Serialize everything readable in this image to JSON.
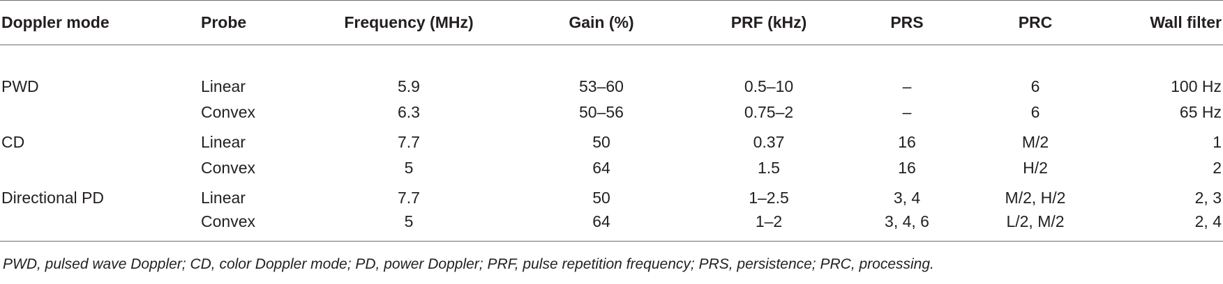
{
  "table": {
    "headers": [
      "Doppler mode",
      "Probe",
      "Frequency (MHz)",
      "Gain (%)",
      "PRF (kHz)",
      "PRS",
      "PRC",
      "Wall filter"
    ],
    "rows": [
      {
        "mode": "PWD",
        "probe": "Linear",
        "frequency": "5.9",
        "gain": "53–60",
        "prf": "0.5–10",
        "prs": "–",
        "prc": "6",
        "wall_filter": "100 Hz"
      },
      {
        "mode": "",
        "probe": "Convex",
        "frequency": "6.3",
        "gain": "50–56",
        "prf": "0.75–2",
        "prs": "–",
        "prc": "6",
        "wall_filter": "65 Hz"
      },
      {
        "mode": "CD",
        "probe": "Linear",
        "frequency": "7.7",
        "gain": "50",
        "prf": "0.37",
        "prs": "16",
        "prc": "M/2",
        "wall_filter": "1"
      },
      {
        "mode": "",
        "probe": "Convex",
        "frequency": "5",
        "gain": "64",
        "prf": "1.5",
        "prs": "16",
        "prc": "H/2",
        "wall_filter": "2"
      },
      {
        "mode": "Directional PD",
        "probe": "Linear",
        "frequency": "7.7",
        "gain": "50",
        "prf": "1–2.5",
        "prs": "3, 4",
        "prc": "M/2, H/2",
        "wall_filter": "2, 3"
      },
      {
        "mode": "",
        "probe": "Convex",
        "frequency": "5",
        "gain": "64",
        "prf": "1–2",
        "prs": "3, 4, 6",
        "prc": "L/2, M/2",
        "wall_filter": "2, 4"
      }
    ]
  },
  "footnote": "PWD, pulsed wave Doppler; CD, color Doppler mode; PD, power Doppler; PRF, pulse repetition frequency; PRS, persistence; PRC, processing."
}
